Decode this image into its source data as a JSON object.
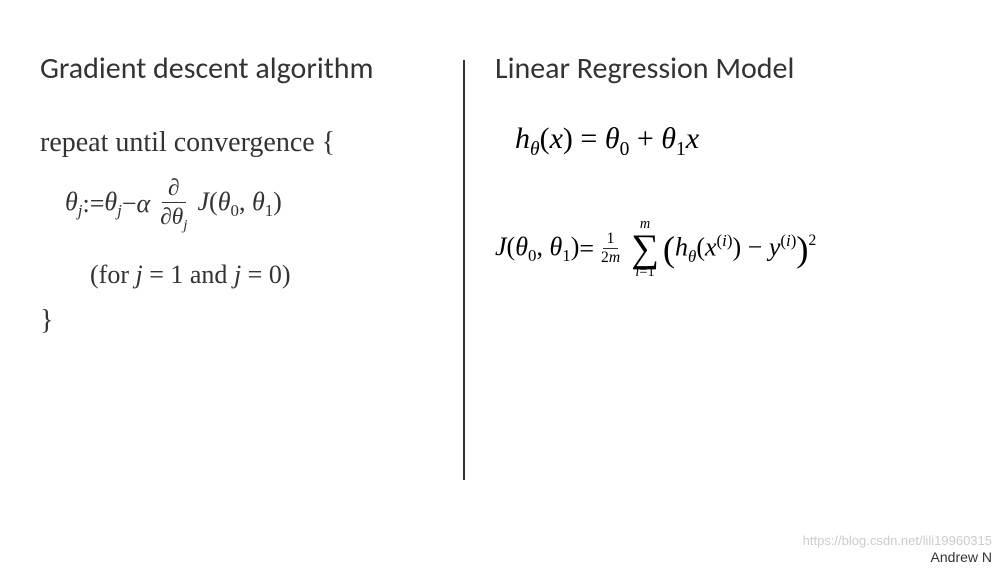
{
  "left": {
    "heading": "Gradient descent algorithm",
    "repeat_text": "repeat until convergence {",
    "theta_j": "θ",
    "sub_j": "j",
    "assign": " := ",
    "minus": " − ",
    "alpha": "α",
    "partial_num": "∂",
    "partial_den_left": "∂θ",
    "partial_den_sub": "j",
    "J_label": "J",
    "J_args_open": "(",
    "theta0": "θ",
    "sub0": "0",
    "comma": ", ",
    "theta1": "θ",
    "sub1": "1",
    "J_args_close": ")",
    "for_text_open": "(for ",
    "for_var1": "j",
    "eq": " = ",
    "val1": "1",
    "and_text": " and ",
    "for_var2": "j",
    "val0": "0",
    "for_text_close": ")",
    "close_brace": "}"
  },
  "right": {
    "heading": "Linear Regression Model",
    "hyp_h": "h",
    "hyp_theta": "θ",
    "hyp_open": "(",
    "hyp_x": "x",
    "hyp_close": ")",
    "hyp_eq": " = ",
    "hyp_t0": "θ",
    "hyp_s0": "0",
    "hyp_plus": " + ",
    "hyp_t1": "θ",
    "hyp_s1": "1",
    "hyp_x2": "x",
    "cost_J": "J",
    "cost_open": "(",
    "cost_t0": "θ",
    "cost_s0": "0",
    "cost_comma": ", ",
    "cost_t1": "θ",
    "cost_s1": "1",
    "cost_close": ")",
    "cost_eq": " = ",
    "frac_num": "1",
    "frac_den_left": "2",
    "frac_den_m": "m",
    "sigma_top": "m",
    "sigma_sym": "∑",
    "sigma_bot_i": "i",
    "sigma_bot_eq": "=",
    "sigma_bot_1": "1",
    "paren_open": "(",
    "inner_h": "h",
    "inner_theta": "θ",
    "inner_open": "(",
    "inner_x": "x",
    "inner_sup_open": "(",
    "inner_sup_i": "i",
    "inner_sup_close": ")",
    "inner_close": ")",
    "inner_minus": " − ",
    "inner_y": "y",
    "inner_ysup_open": "(",
    "inner_ysup_i": "i",
    "inner_ysup_close": ")",
    "paren_close": ")",
    "square": "2"
  },
  "footer": {
    "watermark": "https://blog.csdn.net/lili19960315",
    "author": "Andrew N"
  },
  "style": {
    "text_color": "#333333",
    "bg_color": "#ffffff",
    "heading_fontsize": 30,
    "body_fontsize": 26,
    "divider_color": "#333333",
    "watermark_color": "#cccccc"
  }
}
